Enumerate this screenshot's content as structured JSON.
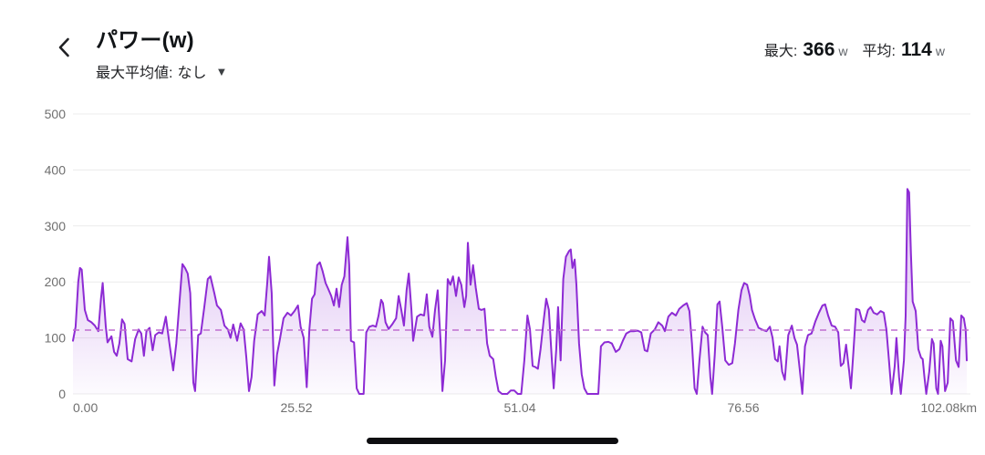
{
  "header": {
    "back_icon": "chevron-left",
    "title": "パワー(w)",
    "subtitle_label": "最大平均値:",
    "subtitle_value": "なし",
    "dropdown_icon": "triangle-down",
    "stats": {
      "max_label": "最大:",
      "max_value": "366",
      "max_unit": "w",
      "avg_label": "平均:",
      "avg_value": "114",
      "avg_unit": "w"
    }
  },
  "colors": {
    "line": "#8d2bd4",
    "fill_top": "rgba(141,43,212,0.46)",
    "fill_bottom": "rgba(141,43,212,0.02)",
    "avg_dash": "#bf6fd0",
    "grid": "#ececec",
    "tick_text": "#6f6f6f",
    "home_indicator": "#0d0d10"
  },
  "chart_data": {
    "type": "area",
    "title": "パワー(w)",
    "xlabel": "km",
    "ylabel": "w",
    "xlim": [
      0,
      102.08
    ],
    "ylim": [
      0,
      500
    ],
    "grid": true,
    "y_ticks": [
      500,
      400,
      300,
      200,
      100,
      0
    ],
    "x_tick_labels": [
      "0.00",
      "25.52",
      "51.04",
      "76.56",
      "102.08km"
    ],
    "x_tick_values": [
      0,
      25.52,
      51.04,
      76.56,
      102.08
    ],
    "max_power_w": 366,
    "avg_power_w": 114,
    "avg_line": 114,
    "points": [
      [
        0,
        95
      ],
      [
        0.3,
        120
      ],
      [
        0.6,
        200
      ],
      [
        0.8,
        225
      ],
      [
        1,
        222
      ],
      [
        1.35,
        150
      ],
      [
        1.7,
        132
      ],
      [
        2.1,
        128
      ],
      [
        2.5,
        122
      ],
      [
        2.9,
        112
      ],
      [
        3.2,
        170
      ],
      [
        3.4,
        198
      ],
      [
        3.75,
        120
      ],
      [
        3.95,
        92
      ],
      [
        4.4,
        103
      ],
      [
        4.7,
        75
      ],
      [
        5,
        68
      ],
      [
        5.3,
        90
      ],
      [
        5.6,
        133
      ],
      [
        5.9,
        125
      ],
      [
        6.25,
        62
      ],
      [
        6.7,
        58
      ],
      [
        7.1,
        98
      ],
      [
        7.5,
        115
      ],
      [
        7.8,
        108
      ],
      [
        8.1,
        68
      ],
      [
        8.4,
        112
      ],
      [
        8.75,
        118
      ],
      [
        9.1,
        78
      ],
      [
        9.4,
        105
      ],
      [
        9.8,
        110
      ],
      [
        10.2,
        108
      ],
      [
        10.6,
        138
      ],
      [
        11,
        92
      ],
      [
        11.45,
        42
      ],
      [
        11.8,
        90
      ],
      [
        12.2,
        170
      ],
      [
        12.5,
        232
      ],
      [
        12.8,
        225
      ],
      [
        13.1,
        215
      ],
      [
        13.4,
        180
      ],
      [
        13.75,
        20
      ],
      [
        13.95,
        5
      ],
      [
        14.3,
        105
      ],
      [
        14.6,
        108
      ],
      [
        15,
        155
      ],
      [
        15.4,
        205
      ],
      [
        15.7,
        210
      ],
      [
        16.15,
        180
      ],
      [
        16.45,
        158
      ],
      [
        16.9,
        150
      ],
      [
        17.3,
        122
      ],
      [
        17.7,
        115
      ],
      [
        18,
        100
      ],
      [
        18.3,
        124
      ],
      [
        18.75,
        95
      ],
      [
        19.15,
        126
      ],
      [
        19.5,
        115
      ],
      [
        19.8,
        65
      ],
      [
        20.1,
        5
      ],
      [
        20.4,
        30
      ],
      [
        20.7,
        95
      ],
      [
        21.1,
        142
      ],
      [
        21.55,
        148
      ],
      [
        21.9,
        140
      ],
      [
        22.2,
        200
      ],
      [
        22.4,
        245
      ],
      [
        22.7,
        180
      ],
      [
        23,
        15
      ],
      [
        23.3,
        70
      ],
      [
        23.6,
        95
      ],
      [
        24.05,
        135
      ],
      [
        24.5,
        145
      ],
      [
        24.9,
        140
      ],
      [
        25.3,
        148
      ],
      [
        25.7,
        158
      ],
      [
        26,
        120
      ],
      [
        26.35,
        100
      ],
      [
        26.7,
        12
      ],
      [
        27,
        115
      ],
      [
        27.3,
        170
      ],
      [
        27.6,
        178
      ],
      [
        27.9,
        230
      ],
      [
        28.2,
        235
      ],
      [
        28.5,
        220
      ],
      [
        28.85,
        198
      ],
      [
        29.15,
        188
      ],
      [
        29.5,
        175
      ],
      [
        29.8,
        158
      ],
      [
        30.1,
        188
      ],
      [
        30.4,
        155
      ],
      [
        30.7,
        195
      ],
      [
        31,
        210
      ],
      [
        31.35,
        280
      ],
      [
        31.55,
        230
      ],
      [
        31.75,
        95
      ],
      [
        32.1,
        92
      ],
      [
        32.4,
        10
      ],
      [
        32.7,
        0
      ],
      [
        33.2,
        0
      ],
      [
        33.5,
        110
      ],
      [
        33.85,
        120
      ],
      [
        34.25,
        122
      ],
      [
        34.6,
        120
      ],
      [
        34.9,
        140
      ],
      [
        35.2,
        168
      ],
      [
        35.4,
        162
      ],
      [
        35.7,
        128
      ],
      [
        36.05,
        116
      ],
      [
        36.45,
        124
      ],
      [
        36.9,
        135
      ],
      [
        37.2,
        175
      ],
      [
        37.5,
        150
      ],
      [
        37.8,
        122
      ],
      [
        38.1,
        185
      ],
      [
        38.35,
        215
      ],
      [
        38.65,
        150
      ],
      [
        38.85,
        95
      ],
      [
        39.3,
        138
      ],
      [
        39.7,
        142
      ],
      [
        40.1,
        140
      ],
      [
        40.4,
        178
      ],
      [
        40.7,
        120
      ],
      [
        41.05,
        102
      ],
      [
        41.35,
        150
      ],
      [
        41.65,
        185
      ],
      [
        42,
        90
      ],
      [
        42.2,
        5
      ],
      [
        42.5,
        60
      ],
      [
        42.8,
        205
      ],
      [
        43.1,
        195
      ],
      [
        43.4,
        210
      ],
      [
        43.75,
        175
      ],
      [
        44.05,
        208
      ],
      [
        44.35,
        195
      ],
      [
        44.7,
        155
      ],
      [
        44.9,
        175
      ],
      [
        45.1,
        270
      ],
      [
        45.4,
        195
      ],
      [
        45.7,
        230
      ],
      [
        46,
        190
      ],
      [
        46.35,
        152
      ],
      [
        46.65,
        150
      ],
      [
        47,
        152
      ],
      [
        47.3,
        90
      ],
      [
        47.6,
        68
      ],
      [
        48,
        62
      ],
      [
        48.3,
        30
      ],
      [
        48.6,
        5
      ],
      [
        49,
        0
      ],
      [
        49.6,
        0
      ],
      [
        50,
        6
      ],
      [
        50.4,
        6
      ],
      [
        50.8,
        0
      ],
      [
        51.2,
        0
      ],
      [
        51.55,
        60
      ],
      [
        51.9,
        140
      ],
      [
        52.2,
        115
      ],
      [
        52.5,
        50
      ],
      [
        52.8,
        48
      ],
      [
        53.1,
        45
      ],
      [
        53.4,
        80
      ],
      [
        53.75,
        130
      ],
      [
        54.05,
        170
      ],
      [
        54.35,
        150
      ],
      [
        54.7,
        60
      ],
      [
        54.9,
        10
      ],
      [
        55.2,
        80
      ],
      [
        55.4,
        155
      ],
      [
        55.7,
        60
      ],
      [
        56,
        205
      ],
      [
        56.3,
        245
      ],
      [
        56.65,
        255
      ],
      [
        56.85,
        258
      ],
      [
        57.05,
        225
      ],
      [
        57.3,
        240
      ],
      [
        57.5,
        195
      ],
      [
        57.8,
        90
      ],
      [
        58.1,
        35
      ],
      [
        58.4,
        10
      ],
      [
        58.75,
        0
      ],
      [
        59.4,
        0
      ],
      [
        60,
        0
      ],
      [
        60.3,
        85
      ],
      [
        60.7,
        92
      ],
      [
        61.15,
        93
      ],
      [
        61.55,
        90
      ],
      [
        62,
        75
      ],
      [
        62.4,
        80
      ],
      [
        62.8,
        95
      ],
      [
        63.2,
        108
      ],
      [
        63.65,
        112
      ],
      [
        64.05,
        112
      ],
      [
        64.5,
        113
      ],
      [
        64.9,
        110
      ],
      [
        65.3,
        78
      ],
      [
        65.6,
        76
      ],
      [
        66,
        108
      ],
      [
        66.45,
        115
      ],
      [
        66.85,
        128
      ],
      [
        67.3,
        122
      ],
      [
        67.6,
        112
      ],
      [
        68,
        138
      ],
      [
        68.4,
        145
      ],
      [
        68.85,
        140
      ],
      [
        69.25,
        152
      ],
      [
        69.7,
        158
      ],
      [
        70.1,
        162
      ],
      [
        70.4,
        148
      ],
      [
        70.7,
        90
      ],
      [
        71,
        10
      ],
      [
        71.25,
        0
      ],
      [
        71.55,
        60
      ],
      [
        71.9,
        120
      ],
      [
        72.2,
        110
      ],
      [
        72.5,
        105
      ],
      [
        72.8,
        30
      ],
      [
        73,
        0
      ],
      [
        73.3,
        70
      ],
      [
        73.6,
        160
      ],
      [
        73.85,
        165
      ],
      [
        74.15,
        120
      ],
      [
        74.5,
        60
      ],
      [
        74.9,
        52
      ],
      [
        75.3,
        55
      ],
      [
        75.6,
        90
      ],
      [
        76,
        150
      ],
      [
        76.35,
        185
      ],
      [
        76.65,
        198
      ],
      [
        77,
        195
      ],
      [
        77.3,
        175
      ],
      [
        77.55,
        150
      ],
      [
        77.9,
        133
      ],
      [
        78.3,
        118
      ],
      [
        78.7,
        115
      ],
      [
        79.2,
        112
      ],
      [
        79.6,
        120
      ],
      [
        79.9,
        100
      ],
      [
        80.2,
        62
      ],
      [
        80.5,
        58
      ],
      [
        80.7,
        85
      ],
      [
        81,
        40
      ],
      [
        81.3,
        25
      ],
      [
        81.7,
        105
      ],
      [
        82.1,
        122
      ],
      [
        82.4,
        100
      ],
      [
        82.7,
        88
      ],
      [
        83,
        45
      ],
      [
        83.3,
        0
      ],
      [
        83.6,
        85
      ],
      [
        83.95,
        105
      ],
      [
        84.35,
        108
      ],
      [
        84.8,
        130
      ],
      [
        85.2,
        145
      ],
      [
        85.6,
        158
      ],
      [
        85.9,
        160
      ],
      [
        86.25,
        140
      ],
      [
        86.65,
        122
      ],
      [
        87.05,
        120
      ],
      [
        87.4,
        110
      ],
      [
        87.7,
        50
      ],
      [
        88,
        55
      ],
      [
        88.3,
        88
      ],
      [
        88.65,
        40
      ],
      [
        88.85,
        10
      ],
      [
        89.15,
        80
      ],
      [
        89.45,
        152
      ],
      [
        89.8,
        150
      ],
      [
        90.1,
        132
      ],
      [
        90.4,
        128
      ],
      [
        90.8,
        150
      ],
      [
        91.1,
        155
      ],
      [
        91.45,
        145
      ],
      [
        91.85,
        142
      ],
      [
        92.25,
        148
      ],
      [
        92.6,
        145
      ],
      [
        92.9,
        115
      ],
      [
        93.2,
        60
      ],
      [
        93.5,
        0
      ],
      [
        93.85,
        50
      ],
      [
        94.05,
        100
      ],
      [
        94.35,
        30
      ],
      [
        94.55,
        0
      ],
      [
        94.9,
        60
      ],
      [
        95.1,
        140
      ],
      [
        95.3,
        366
      ],
      [
        95.5,
        360
      ],
      [
        95.7,
        250
      ],
      [
        95.9,
        165
      ],
      [
        96.25,
        148
      ],
      [
        96.55,
        80
      ],
      [
        96.85,
        65
      ],
      [
        97.05,
        62
      ],
      [
        97.25,
        30
      ],
      [
        97.45,
        0
      ],
      [
        97.8,
        40
      ],
      [
        98.1,
        98
      ],
      [
        98.3,
        90
      ],
      [
        98.6,
        10
      ],
      [
        98.8,
        0
      ],
      [
        99.1,
        95
      ],
      [
        99.3,
        85
      ],
      [
        99.6,
        5
      ],
      [
        99.9,
        20
      ],
      [
        100.2,
        135
      ],
      [
        100.5,
        130
      ],
      [
        100.85,
        60
      ],
      [
        101.15,
        48
      ],
      [
        101.45,
        140
      ],
      [
        101.75,
        135
      ],
      [
        101.95,
        115
      ],
      [
        102.08,
        60
      ]
    ]
  }
}
